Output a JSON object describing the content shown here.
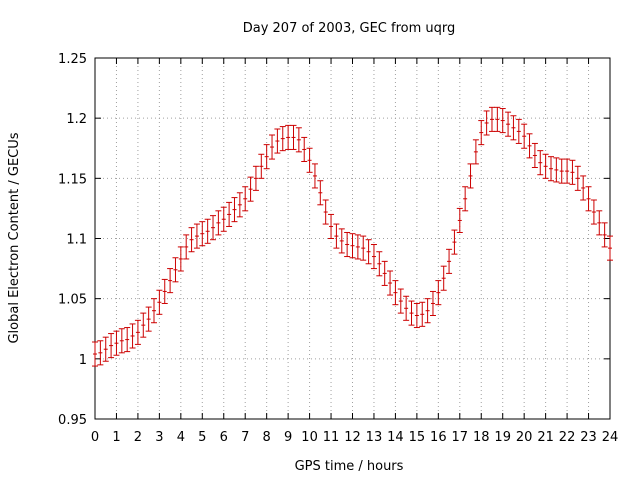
{
  "chart_data": {
    "type": "scatter",
    "title": "Day 207 of 2003, GEC from uqrg",
    "xlabel": "GPS time / hours",
    "ylabel": "Global Electron Content / GECUs",
    "xlim": [
      0,
      24
    ],
    "ylim": [
      0.95,
      1.25
    ],
    "x_ticks": [
      "0",
      "1",
      "2",
      "3",
      "4",
      "5",
      "6",
      "7",
      "8",
      "9",
      "10",
      "11",
      "12",
      "13",
      "14",
      "15",
      "16",
      "17",
      "18",
      "19",
      "20",
      "21",
      "22",
      "23",
      "24"
    ],
    "y_ticks": [
      "0.95",
      "1",
      "1.05",
      "1.1",
      "1.15",
      "1.2",
      "1.25"
    ],
    "grid": true,
    "error_bar": 0.01,
    "colors": {
      "series": "#cc0000",
      "grid": "#a0a0a0",
      "axes": "#000000"
    },
    "series": [
      {
        "x": [
          0,
          0.25,
          0.5,
          0.75,
          1,
          1.25,
          1.5,
          1.75,
          2,
          2.25,
          2.5,
          2.75,
          3,
          3.25,
          3.5,
          3.75,
          4,
          4.25,
          4.5,
          4.75,
          5,
          5.25,
          5.5,
          5.75,
          6,
          6.25,
          6.5,
          6.75,
          7,
          7.25,
          7.5,
          7.75,
          8,
          8.25,
          8.5,
          8.75,
          9,
          9.25,
          9.5,
          9.75,
          10,
          10.25,
          10.5,
          10.75,
          11,
          11.25,
          11.5,
          11.75,
          12,
          12.25,
          12.5,
          12.75,
          13,
          13.25,
          13.5,
          13.75,
          14,
          14.25,
          14.5,
          14.75,
          15,
          15.25,
          15.5,
          15.75,
          16,
          16.25,
          16.5,
          16.75,
          17,
          17.25,
          17.5,
          17.75,
          18,
          18.25,
          18.5,
          18.75,
          19,
          19.25,
          19.5,
          19.75,
          20,
          20.25,
          20.5,
          20.75,
          21,
          21.25,
          21.5,
          21.75,
          22,
          22.25,
          22.5,
          22.75,
          23,
          23.25,
          23.5,
          23.75,
          24
        ],
        "y": [
          1.004,
          1.005,
          1.008,
          1.011,
          1.013,
          1.015,
          1.016,
          1.019,
          1.022,
          1.028,
          1.033,
          1.04,
          1.047,
          1.056,
          1.065,
          1.074,
          1.083,
          1.093,
          1.099,
          1.102,
          1.104,
          1.106,
          1.109,
          1.113,
          1.116,
          1.12,
          1.124,
          1.128,
          1.133,
          1.141,
          1.15,
          1.16,
          1.168,
          1.176,
          1.181,
          1.183,
          1.184,
          1.184,
          1.182,
          1.174,
          1.165,
          1.152,
          1.138,
          1.122,
          1.11,
          1.102,
          1.098,
          1.095,
          1.094,
          1.093,
          1.092,
          1.089,
          1.085,
          1.079,
          1.071,
          1.063,
          1.055,
          1.048,
          1.042,
          1.038,
          1.036,
          1.037,
          1.04,
          1.046,
          1.055,
          1.067,
          1.081,
          1.097,
          1.115,
          1.133,
          1.152,
          1.172,
          1.188,
          1.196,
          1.199,
          1.199,
          1.198,
          1.195,
          1.192,
          1.189,
          1.185,
          1.177,
          1.169,
          1.163,
          1.16,
          1.158,
          1.157,
          1.156,
          1.156,
          1.155,
          1.15,
          1.142,
          1.133,
          1.122,
          1.113,
          1.103,
          1.092
        ]
      }
    ]
  }
}
